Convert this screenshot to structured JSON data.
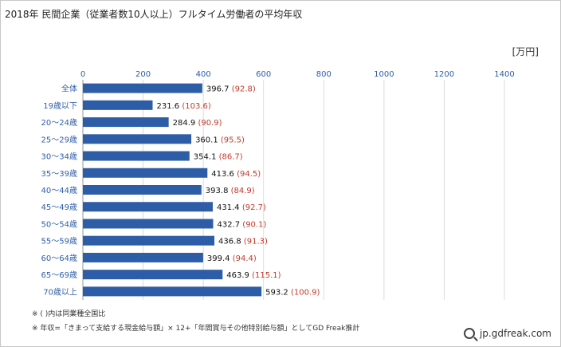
{
  "chart_data": {
    "type": "bar",
    "orientation": "horizontal",
    "title": "2018年 民間企業（従業者数10人以上）フルタイム労働者の平均年収",
    "unit": "[万円]",
    "xlim": [
      0,
      1400
    ],
    "xticks": [
      0,
      200,
      400,
      600,
      800,
      1000,
      1200,
      1400
    ],
    "grid": true,
    "bar_color": "#2e5da8",
    "categories": [
      "全体",
      "19歳以下",
      "20〜24歳",
      "25〜29歳",
      "30〜34歳",
      "35〜39歳",
      "40〜44歳",
      "45〜49歳",
      "50〜54歳",
      "55〜59歳",
      "60〜64歳",
      "65〜69歳",
      "70歳以上"
    ],
    "values": [
      396.7,
      231.6,
      284.9,
      360.1,
      354.1,
      413.6,
      393.8,
      431.4,
      432.7,
      436.8,
      399.4,
      463.9,
      593.2
    ],
    "value_labels": [
      "396.7",
      "231.6",
      "284.9",
      "360.1",
      "354.1",
      "413.6",
      "393.8",
      "431.4",
      "432.7",
      "436.8",
      "399.4",
      "463.9",
      "593.2"
    ],
    "ratios": [
      "(92.8)",
      "(103.6)",
      "(90.9)",
      "(95.5)",
      "(86.7)",
      "(94.5)",
      "(84.9)",
      "(92.7)",
      "(90.1)",
      "(91.3)",
      "(94.4)",
      "(115.1)",
      "(100.9)"
    ]
  },
  "notes": [
    "※ ( )内は同業種全国比",
    "※ 年収=「きまって支給する現金給与額」× 12+「年間賞与その他特別給与額」としてGD Freak推計"
  ],
  "credit": "jp.gdfreak.com"
}
